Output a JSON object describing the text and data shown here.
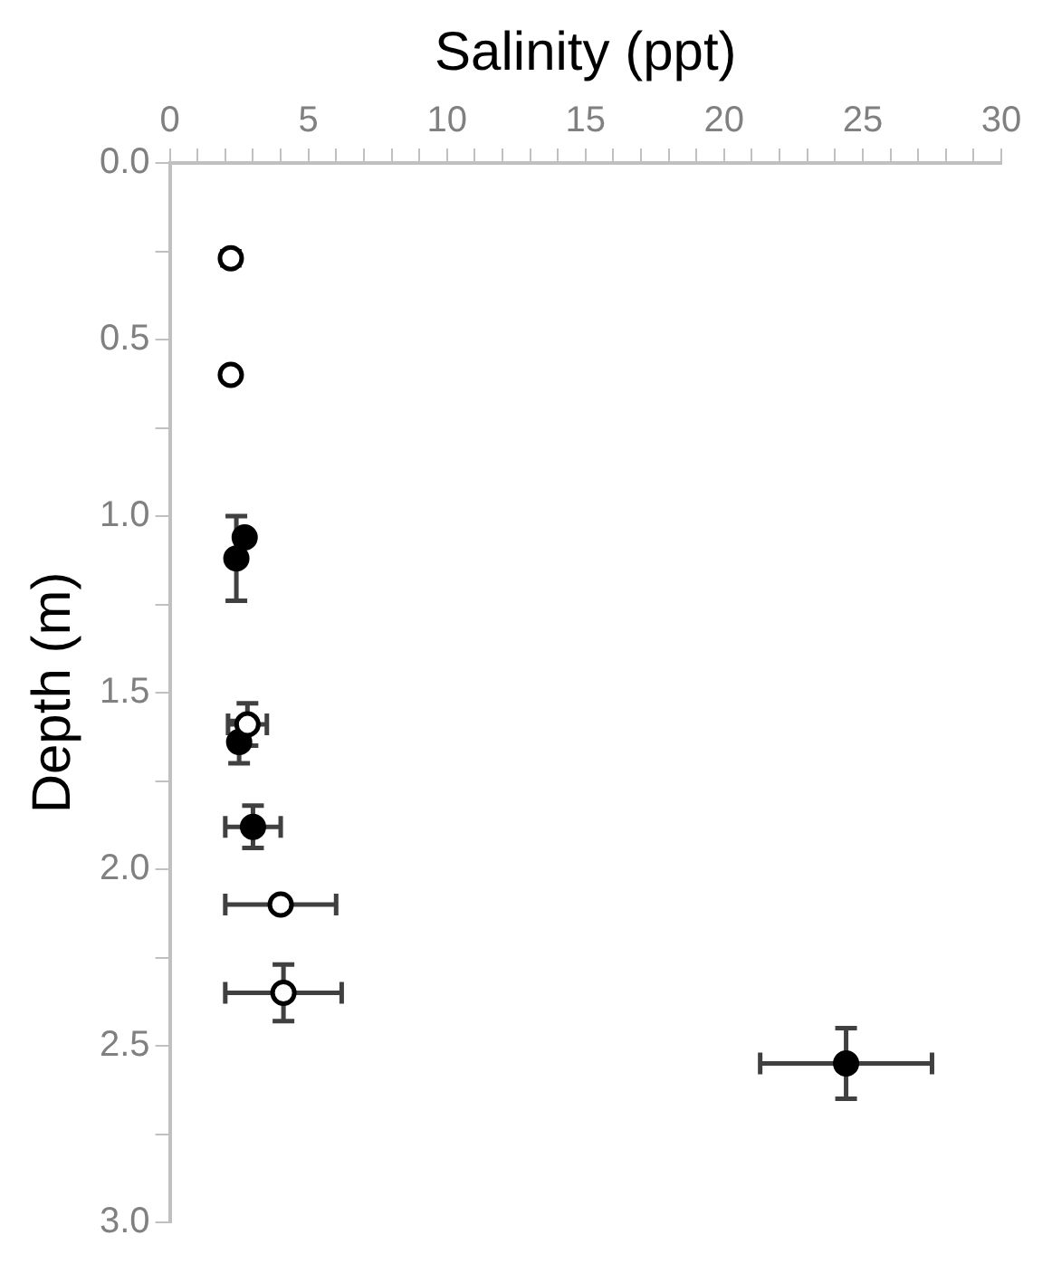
{
  "chart_data": {
    "type": "scatter",
    "xlabel": "Salinity (ppt)",
    "ylabel": "Depth (m)",
    "marker": "circle",
    "grid": false,
    "legend": false,
    "xlim": [
      0,
      30
    ],
    "xticks": [
      0,
      {
        "value": 1,
        "label": null
      },
      {
        "value": 2,
        "label": null
      },
      {
        "value": 3,
        "label": null
      },
      {
        "value": 4,
        "label": null
      },
      5,
      {
        "value": 6,
        "label": null
      },
      {
        "value": 7,
        "label": null
      },
      {
        "value": 8,
        "label": null
      },
      {
        "value": 9,
        "label": null
      },
      10,
      {
        "value": 11,
        "label": null
      },
      {
        "value": 12,
        "label": null
      },
      {
        "value": 13,
        "label": null
      },
      {
        "value": 14,
        "label": null
      },
      15,
      {
        "value": 16,
        "label": null
      },
      {
        "value": 17,
        "label": null
      },
      {
        "value": 18,
        "label": null
      },
      {
        "value": 19,
        "label": null
      },
      20,
      {
        "value": 21,
        "label": null
      },
      {
        "value": 22,
        "label": null
      },
      {
        "value": 23,
        "label": null
      },
      {
        "value": 24,
        "label": null
      },
      25,
      {
        "value": 26,
        "label": null
      },
      {
        "value": 27,
        "label": null
      },
      {
        "value": 28,
        "label": null
      },
      {
        "value": 29,
        "label": null
      },
      30
    ],
    "ylim": [
      3,
      0
    ],
    "yticks": [
      {
        "value": 0,
        "label": "0.0"
      },
      {
        "value": 0.25,
        "label": null
      },
      {
        "value": 0.5,
        "label": "0.5"
      },
      {
        "value": 0.75,
        "label": null
      },
      {
        "value": 1,
        "label": "1.0"
      },
      {
        "value": 1.25,
        "label": null
      },
      {
        "value": 1.5,
        "label": "1.5"
      },
      {
        "value": 1.75,
        "label": null
      },
      {
        "value": 2,
        "label": "2.0"
      },
      {
        "value": 2.25,
        "label": null
      },
      {
        "value": 2.5,
        "label": "2.5"
      },
      {
        "value": 2.75,
        "label": null
      },
      {
        "value": 3,
        "label": "3.0"
      }
    ],
    "series": [
      {
        "color": "#ffffff",
        "x": [
          2.2,
          2.2,
          2.8,
          4.0,
          4.1
        ],
        "values": [
          0.27,
          0.6,
          1.59,
          2.1,
          2.35
        ],
        "errors": [
          0.02,
          null,
          0.06,
          null,
          0.08
        ],
        "xerrors": [
          null,
          null,
          0.7,
          2.0,
          2.1
        ]
      },
      {
        "color": "#000000",
        "x": [
          2.7,
          2.4,
          2.5,
          3.0,
          24.4
        ],
        "values": [
          1.06,
          1.12,
          1.64,
          1.88,
          2.55
        ],
        "errors": [
          null,
          0.12,
          0.06,
          0.06,
          0.1
        ],
        "xerrors": [
          null,
          null,
          null,
          1.0,
          3.1
        ]
      }
    ]
  }
}
